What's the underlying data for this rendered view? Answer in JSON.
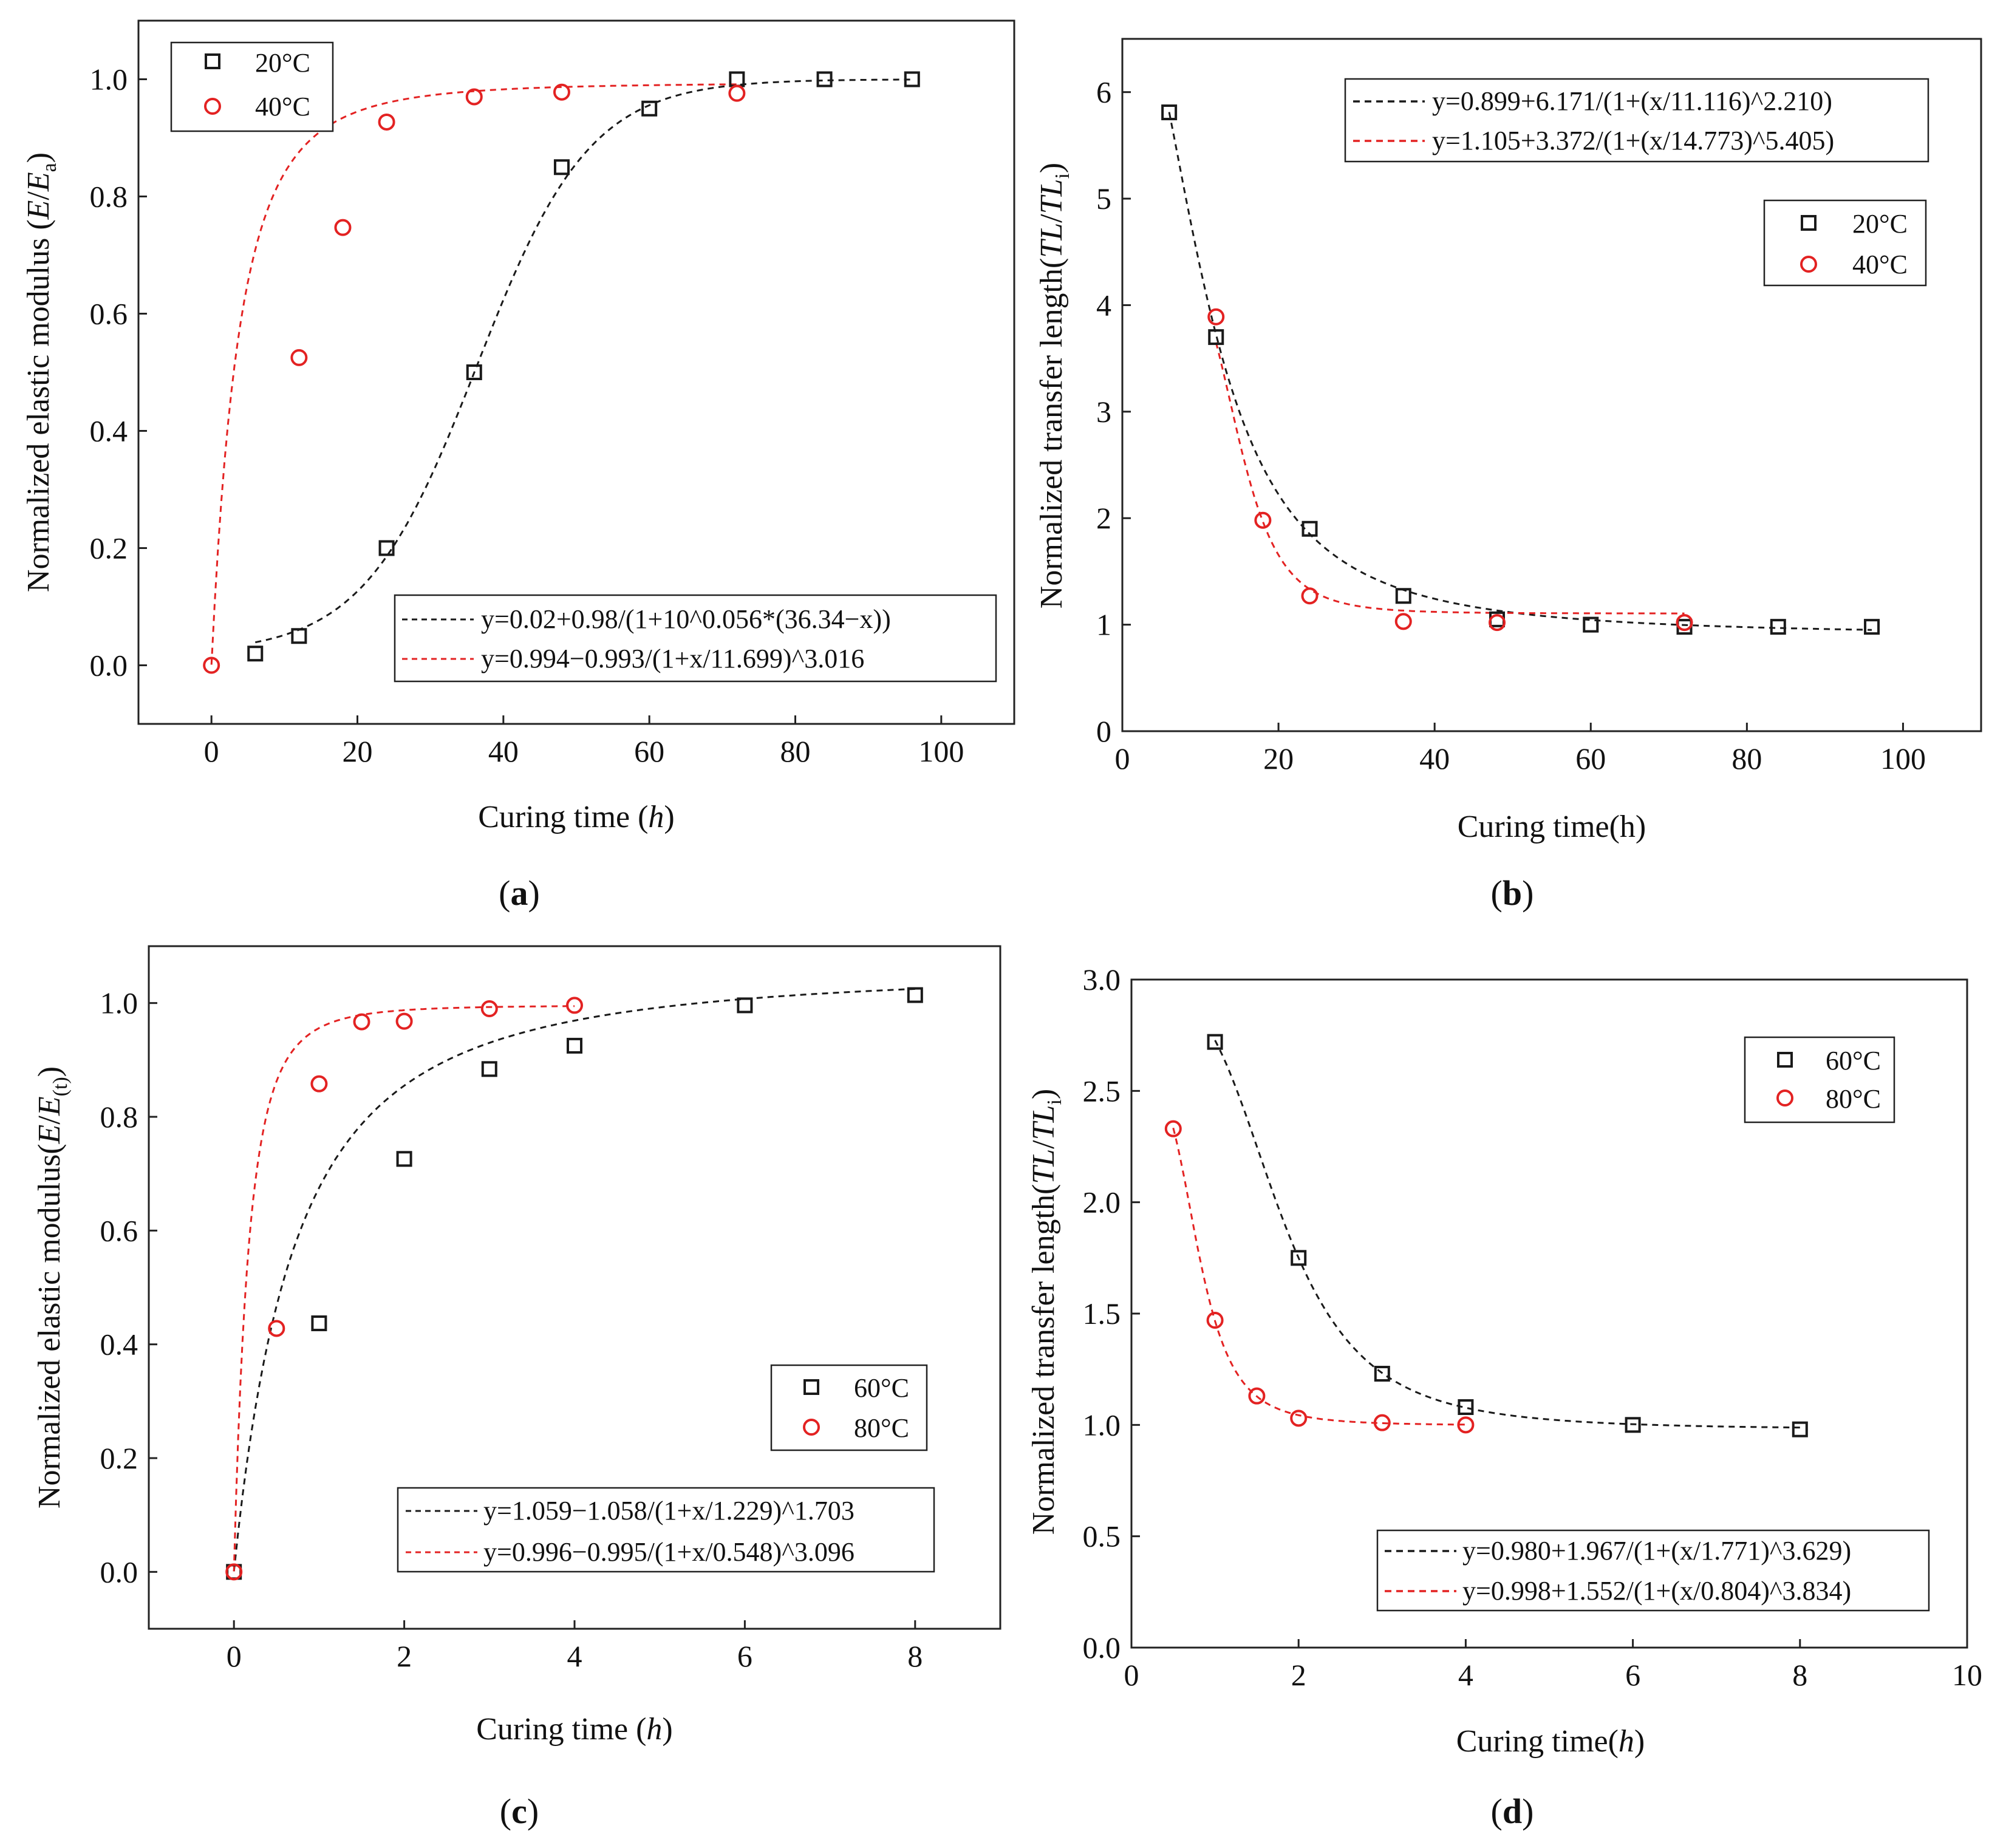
{
  "colors": {
    "series_black": "#1a1a1a",
    "series_red": "#e32222",
    "axis": "#222222"
  },
  "chart_data": [
    {
      "type": "scatter",
      "panel": "a",
      "caption_prefix": "(",
      "caption_letter": "a",
      "caption_suffix": ")",
      "xlabel_pre": "Curing time (",
      "xlabel_var": "h",
      "xlabel_post": ")",
      "ylabel_pre": "Normalized elastic modulus (",
      "ylabel_var": "E",
      "ylabel_slash": "/",
      "ylabel_var2": "E",
      "ylabel_sub": "a",
      "ylabel_post": ")",
      "xlim": [
        -10,
        110
      ],
      "ylim": [
        -0.1,
        1.1
      ],
      "xticks": [
        0,
        20,
        40,
        60,
        80,
        100
      ],
      "yticks": [
        0.0,
        0.2,
        0.4,
        0.6,
        0.8,
        1.0
      ],
      "ytick_labels": [
        "0.0",
        "0.2",
        "0.4",
        "0.6",
        "0.8",
        "1.0"
      ],
      "series": [
        {
          "name": "20°C",
          "marker": "square",
          "color": "#1a1a1a",
          "x": [
            6,
            12,
            24,
            36,
            48,
            60,
            72,
            84,
            96
          ],
          "y": [
            0.02,
            0.05,
            0.2,
            0.5,
            0.85,
            0.95,
            1.0,
            1.0,
            1.0
          ]
        },
        {
          "name": "40°C",
          "marker": "circle",
          "color": "#e32222",
          "x": [
            0,
            12,
            18,
            24,
            36,
            48,
            72
          ],
          "y": [
            0.0,
            0.525,
            0.747,
            0.927,
            0.97,
            0.978,
            0.976
          ]
        }
      ],
      "fits": [
        {
          "label": "y=0.02+0.98/(1+10^0.056*(36.34−x))",
          "color": "#1a1a1a",
          "model": "logistic10",
          "params": [
            0.02,
            0.98,
            0.056,
            36.34
          ],
          "x_range": [
            6,
            96
          ]
        },
        {
          "label": "y=0.994−0.993/(1+x/11.699)^3.016",
          "color": "#e32222",
          "model": "rise",
          "params": [
            0.994,
            0.993,
            11.699,
            3.016
          ],
          "x_range": [
            0,
            72
          ]
        }
      ],
      "legend_placement": "top-left",
      "fit_legend_placement": "bottom-right"
    },
    {
      "type": "scatter",
      "panel": "b",
      "caption_prefix": "(",
      "caption_letter": "b",
      "caption_suffix": ")",
      "xlabel_pre": "Curing time(h)",
      "xlabel_var": "",
      "xlabel_post": "",
      "ylabel_pre": "Normalized transfer length(",
      "ylabel_var": "TL",
      "ylabel_slash": "/",
      "ylabel_var2": "TL",
      "ylabel_sub": "i",
      "ylabel_post": ")",
      "xlim": [
        0,
        110
      ],
      "ylim": [
        0,
        6.5
      ],
      "xticks": [
        0,
        20,
        40,
        60,
        80,
        100
      ],
      "yticks": [
        0,
        1,
        2,
        3,
        4,
        5,
        6
      ],
      "ytick_labels": [
        "0",
        "1",
        "2",
        "3",
        "4",
        "5",
        "6"
      ],
      "series": [
        {
          "name": "20°C",
          "marker": "square",
          "color": "#1a1a1a",
          "x": [
            6,
            12,
            24,
            36,
            48,
            60,
            72,
            84,
            96
          ],
          "y": [
            5.81,
            3.7,
            1.9,
            1.27,
            1.05,
            1.0,
            0.98,
            0.98,
            0.98
          ]
        },
        {
          "name": "40°C",
          "marker": "circle",
          "color": "#e32222",
          "x": [
            12,
            18,
            24,
            36,
            48,
            72
          ],
          "y": [
            3.89,
            1.98,
            1.27,
            1.03,
            1.02,
            1.02
          ]
        }
      ],
      "fits": [
        {
          "label": "y=0.899+6.171/(1+(x/11.116)^2.210)",
          "color": "#1a1a1a",
          "model": "decay",
          "params": [
            0.899,
            6.171,
            11.116,
            2.21
          ],
          "x_range": [
            6,
            96
          ]
        },
        {
          "label": "y=1.105+3.372/(1+(x/14.773)^5.405)",
          "color": "#e32222",
          "model": "decay",
          "params": [
            1.105,
            3.372,
            14.773,
            5.405
          ],
          "x_range": [
            12,
            72
          ]
        }
      ],
      "legend_placement": "right",
      "fit_legend_placement": "top-right"
    },
    {
      "type": "scatter",
      "panel": "c",
      "caption_prefix": "(",
      "caption_letter": "c",
      "caption_suffix": ")",
      "xlabel_pre": "Curing time (",
      "xlabel_var": "h",
      "xlabel_post": ")",
      "ylabel_pre": "Normalized elastic modulus(",
      "ylabel_var": "E",
      "ylabel_slash": "/",
      "ylabel_var2": "E",
      "ylabel_sub": "(t)",
      "ylabel_post": ")",
      "xlim": [
        -1,
        9
      ],
      "ylim": [
        -0.1,
        1.1
      ],
      "xticks": [
        0,
        2,
        4,
        6,
        8
      ],
      "yticks": [
        0.0,
        0.2,
        0.4,
        0.6,
        0.8,
        1.0
      ],
      "ytick_labels": [
        "0.0",
        "0.2",
        "0.4",
        "0.6",
        "0.8",
        "1.0"
      ],
      "series": [
        {
          "name": "60°C",
          "marker": "square",
          "color": "#1a1a1a",
          "x": [
            0,
            1,
            2,
            3,
            4,
            6,
            8
          ],
          "y": [
            0.0,
            0.437,
            0.726,
            0.884,
            0.925,
            0.996,
            1.014
          ]
        },
        {
          "name": "80°C",
          "marker": "circle",
          "color": "#e32222",
          "x": [
            0,
            0.5,
            1,
            1.5,
            2,
            3,
            4
          ],
          "y": [
            0.0,
            0.428,
            0.858,
            0.967,
            0.968,
            0.99,
            0.996
          ]
        }
      ],
      "fits": [
        {
          "label": "y=1.059−1.058/(1+x/1.229)^1.703",
          "color": "#1a1a1a",
          "model": "rise",
          "params": [
            1.059,
            1.058,
            1.229,
            1.703
          ],
          "x_range": [
            0,
            8
          ]
        },
        {
          "label": "y=0.996−0.995/(1+x/0.548)^3.096",
          "color": "#e32222",
          "model": "rise",
          "params": [
            0.996,
            0.995,
            0.548,
            3.096
          ],
          "x_range": [
            0,
            4
          ]
        }
      ],
      "legend_placement": "bottom-right",
      "fit_legend_placement": "bottom-right"
    },
    {
      "type": "scatter",
      "panel": "d",
      "caption_prefix": "(",
      "caption_letter": "d",
      "caption_suffix": ")",
      "xlabel_pre": "Curing time(",
      "xlabel_var": "h",
      "xlabel_post": ")",
      "ylabel_pre": "Normalized transfer length(",
      "ylabel_var": "TL",
      "ylabel_slash": "/",
      "ylabel_var2": "TL",
      "ylabel_sub": "i",
      "ylabel_post": ")",
      "xlim": [
        0,
        10
      ],
      "ylim": [
        0,
        3.0
      ],
      "xticks": [
        0,
        2,
        4,
        6,
        8,
        10
      ],
      "yticks": [
        0.0,
        0.5,
        1.0,
        1.5,
        2.0,
        2.5,
        3.0
      ],
      "ytick_labels": [
        "0.0",
        "0.5",
        "1.0",
        "1.5",
        "2.0",
        "2.5",
        "3.0"
      ],
      "series": [
        {
          "name": "60°C",
          "marker": "square",
          "color": "#1a1a1a",
          "x": [
            1,
            2,
            3,
            4,
            6,
            8
          ],
          "y": [
            2.72,
            1.75,
            1.23,
            1.08,
            1.0,
            0.98
          ]
        },
        {
          "name": "80°C",
          "marker": "circle",
          "color": "#e32222",
          "x": [
            0.5,
            1,
            1.5,
            2,
            3,
            4
          ],
          "y": [
            2.33,
            1.47,
            1.13,
            1.03,
            1.01,
            1.0
          ]
        }
      ],
      "fits": [
        {
          "label": "y=0.980+1.967/(1+(x/1.771)^3.629)",
          "color": "#1a1a1a",
          "model": "decay",
          "params": [
            0.98,
            1.967,
            1.771,
            3.629
          ],
          "x_range": [
            1,
            8
          ]
        },
        {
          "label": "y=0.998+1.552/(1+(x/0.804)^3.834)",
          "color": "#e32222",
          "model": "decay",
          "params": [
            0.998,
            1.552,
            0.804,
            3.834
          ],
          "x_range": [
            0.5,
            4
          ]
        }
      ],
      "legend_placement": "top-right",
      "fit_legend_placement": "bottom-right"
    }
  ]
}
